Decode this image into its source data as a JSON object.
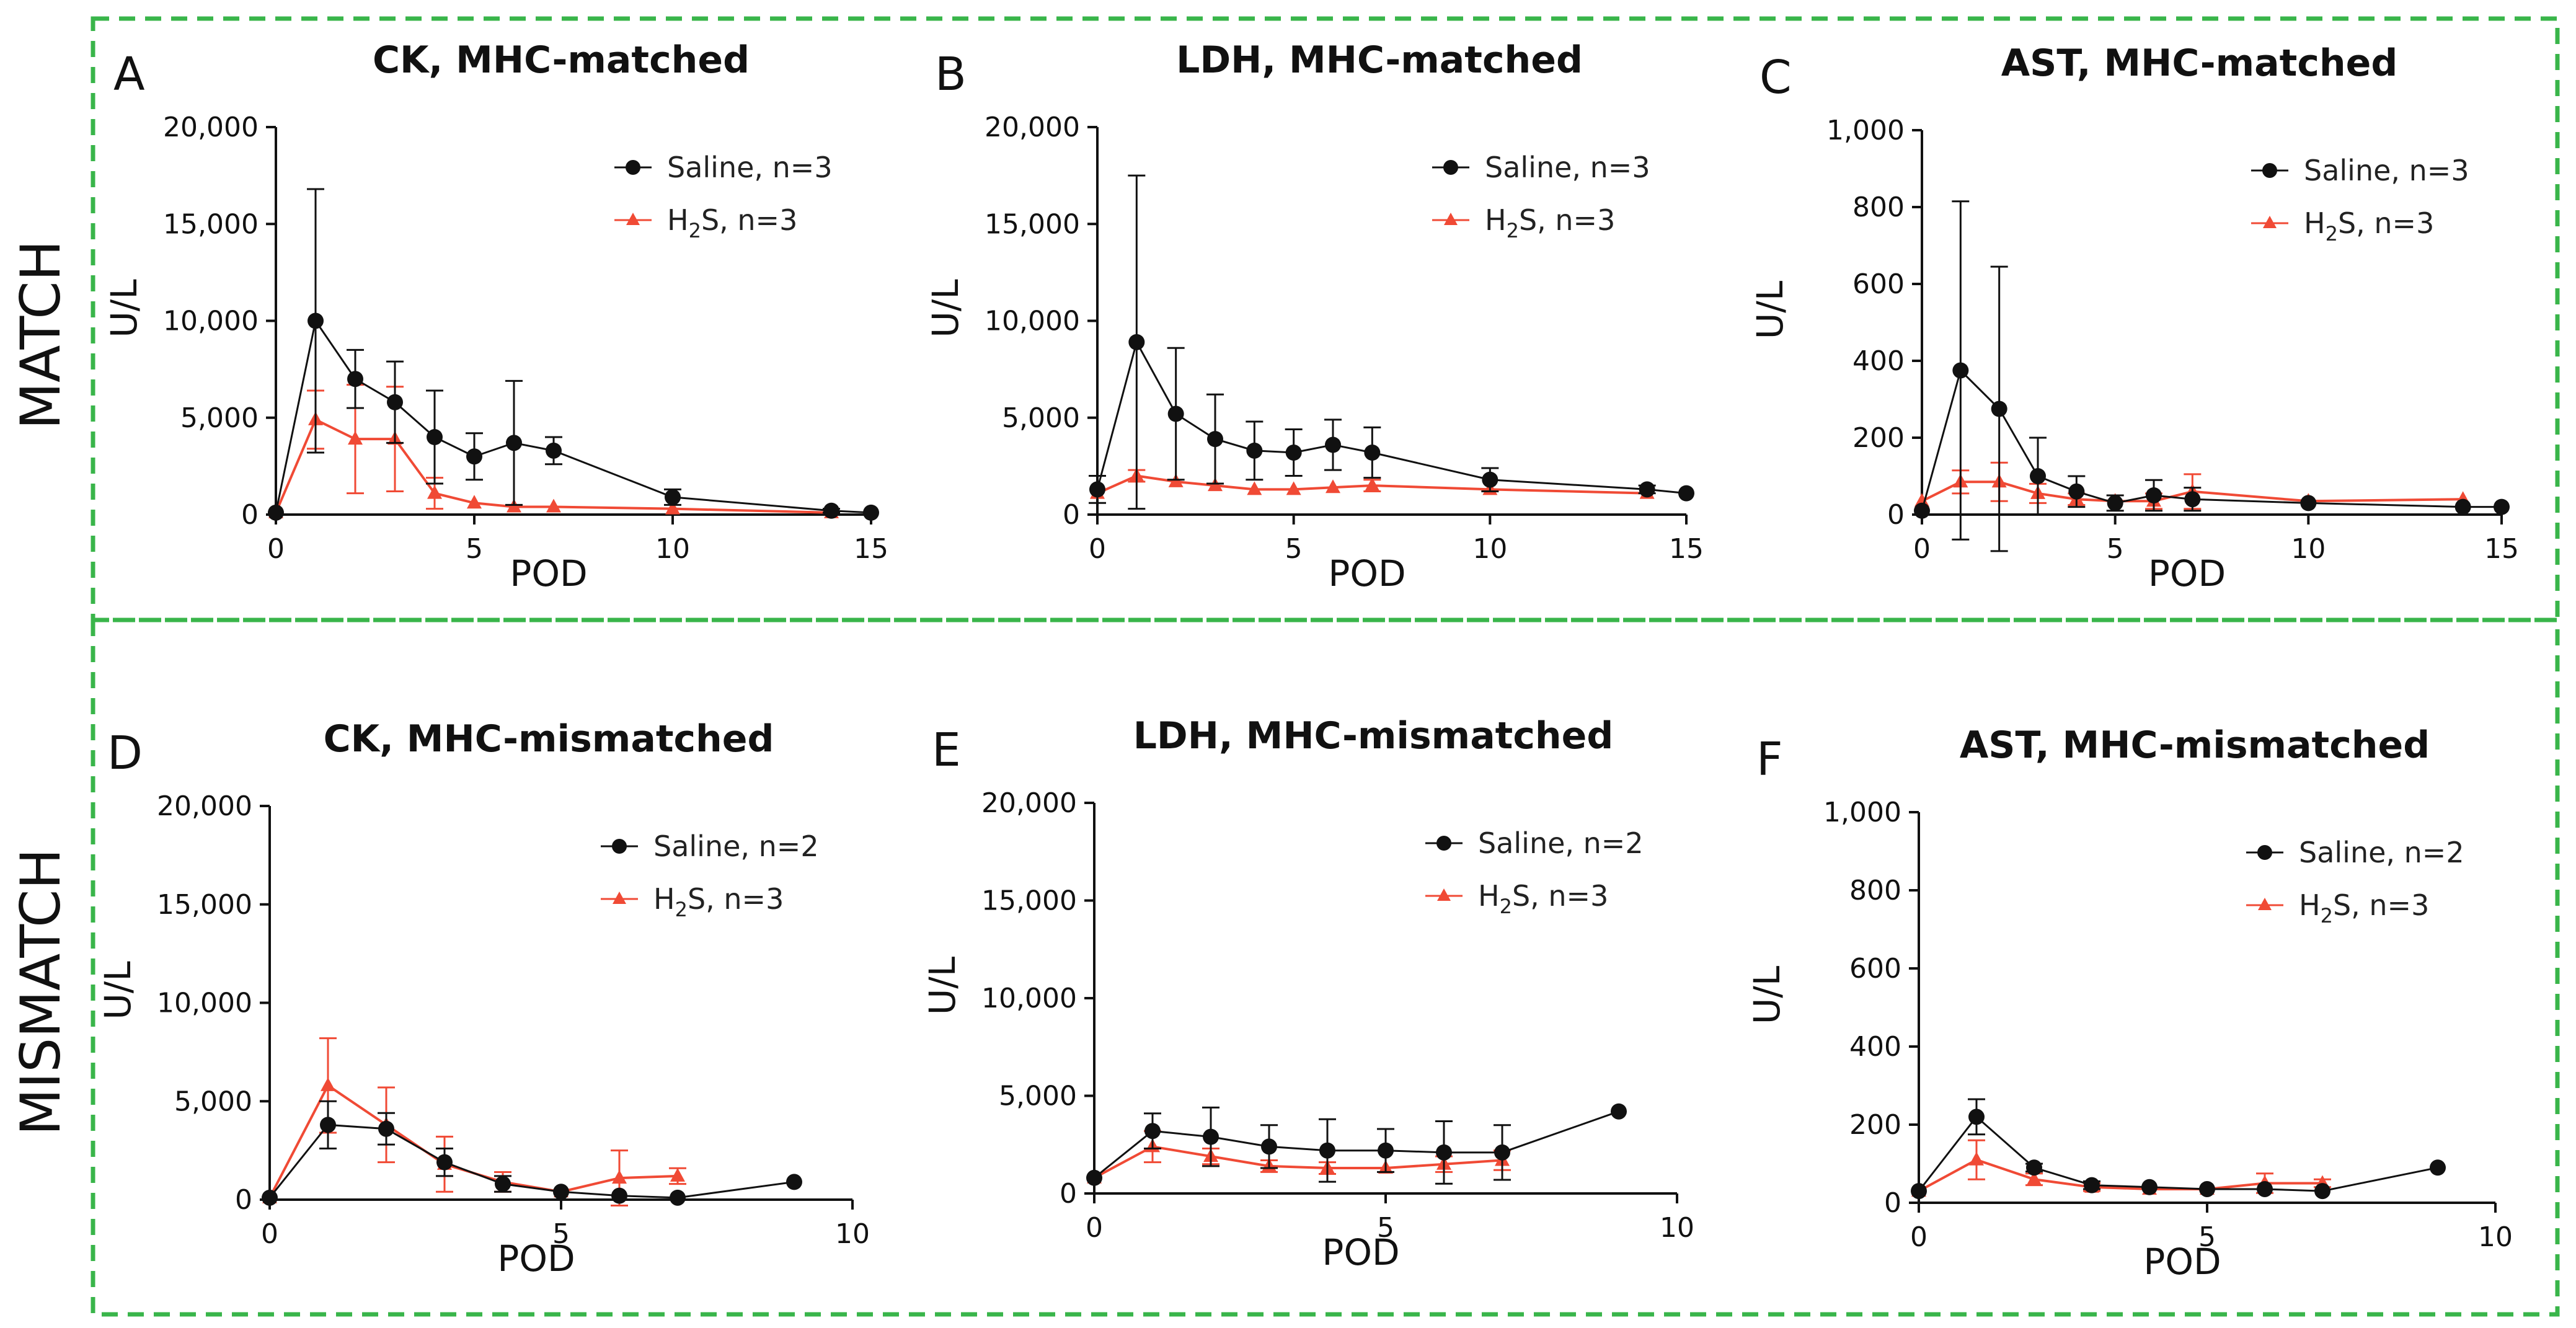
{
  "section_labels": [
    "MATCH",
    "MISMATCH"
  ],
  "colors": {
    "saline": "#111111",
    "h2s": "#f04a35",
    "frame": "#39b54a"
  },
  "chart_data": [
    {
      "panel": "A",
      "type": "line",
      "title": "CK, MHC-matched",
      "xlabel": "POD",
      "ylabel": "U/L",
      "xlim": [
        0,
        15
      ],
      "ylim": [
        0,
        20000
      ],
      "xticks": [
        "0",
        "5",
        "10",
        "15"
      ],
      "xtick_values": [
        0,
        5,
        10,
        15
      ],
      "yticks": [
        "0",
        "5,000",
        "10,000",
        "15,000",
        "20,000"
      ],
      "ytick_values": [
        0,
        5000,
        10000,
        15000,
        20000
      ],
      "legend": {
        "saline": "Saline, n=3",
        "h2s_prefix": "H",
        "h2s_sub": "2",
        "h2s_suffix": "S, n=3"
      },
      "series": [
        {
          "name": "Saline",
          "marker": "circle",
          "x": [
            0,
            1,
            2,
            3,
            4,
            5,
            6,
            7,
            10,
            14,
            15
          ],
          "y": [
            100,
            10000,
            7000,
            5800,
            4000,
            3000,
            3700,
            3300,
            900,
            200,
            100
          ],
          "err": [
            0,
            6800,
            1500,
            2100,
            2400,
            1200,
            3200,
            700,
            400,
            100,
            0
          ]
        },
        {
          "name": "H2S",
          "marker": "triangle",
          "x": [
            0,
            1,
            2,
            3,
            4,
            5,
            6,
            7,
            10,
            14
          ],
          "y": [
            100,
            4900,
            3900,
            3900,
            1100,
            600,
            400,
            400,
            300,
            100
          ],
          "err": [
            0,
            1500,
            2800,
            2700,
            800,
            0,
            0,
            0,
            0,
            0
          ]
        }
      ]
    },
    {
      "panel": "B",
      "type": "line",
      "title": "LDH, MHC-matched",
      "xlabel": "POD",
      "ylabel": "U/L",
      "xlim": [
        0,
        15
      ],
      "ylim": [
        0,
        20000
      ],
      "xticks": [
        "0",
        "5",
        "10",
        "15"
      ],
      "xtick_values": [
        0,
        5,
        10,
        15
      ],
      "yticks": [
        "0",
        "5,000",
        "10,000",
        "15,000",
        "20,000"
      ],
      "ytick_values": [
        0,
        5000,
        10000,
        15000,
        20000
      ],
      "legend": {
        "saline": "Saline, n=3",
        "h2s_prefix": "H",
        "h2s_sub": "2",
        "h2s_suffix": "S, n=3"
      },
      "series": [
        {
          "name": "Saline",
          "marker": "circle",
          "x": [
            0,
            1,
            2,
            3,
            4,
            5,
            6,
            7,
            10,
            14,
            15
          ],
          "y": [
            1300,
            8900,
            5200,
            3900,
            3300,
            3200,
            3600,
            3200,
            1800,
            1300,
            1100
          ],
          "err": [
            700,
            8600,
            3400,
            2300,
            1500,
            1200,
            1300,
            1300,
            600,
            200,
            0
          ]
        },
        {
          "name": "H2S",
          "marker": "triangle",
          "x": [
            0,
            1,
            2,
            3,
            4,
            5,
            6,
            7,
            10,
            14
          ],
          "y": [
            1100,
            2000,
            1700,
            1500,
            1300,
            1300,
            1400,
            1500,
            1300,
            1100
          ],
          "err": [
            0,
            300,
            0,
            0,
            0,
            0,
            0,
            300,
            0,
            0
          ]
        }
      ]
    },
    {
      "panel": "C",
      "type": "line",
      "title": "AST, MHC-matched",
      "xlabel": "POD",
      "ylabel": "U/L",
      "xlim": [
        0,
        15
      ],
      "ylim": [
        0,
        1000
      ],
      "xticks": [
        "0",
        "5",
        "10",
        "15"
      ],
      "xtick_values": [
        0,
        5,
        10,
        15
      ],
      "yticks": [
        "0",
        "200",
        "400",
        "600",
        "800",
        "1,000"
      ],
      "ytick_values": [
        0,
        200,
        400,
        600,
        800,
        1000
      ],
      "legend": {
        "saline": "Saline, n=3",
        "h2s_prefix": "H",
        "h2s_sub": "2",
        "h2s_suffix": "S, n=3"
      },
      "series": [
        {
          "name": "Saline",
          "marker": "circle",
          "x": [
            0,
            1,
            2,
            3,
            4,
            5,
            6,
            7,
            10,
            14,
            15
          ],
          "y": [
            10,
            375,
            275,
            100,
            60,
            30,
            50,
            40,
            30,
            20,
            20
          ],
          "err": [
            0,
            440,
            370,
            100,
            40,
            20,
            40,
            30,
            0,
            0,
            0
          ]
        },
        {
          "name": "H2S",
          "marker": "triangle",
          "x": [
            0,
            1,
            2,
            3,
            4,
            5,
            6,
            7,
            10,
            14
          ],
          "y": [
            35,
            85,
            85,
            55,
            40,
            35,
            35,
            60,
            35,
            40
          ],
          "err": [
            0,
            30,
            50,
            25,
            15,
            0,
            20,
            45,
            0,
            0
          ]
        }
      ]
    },
    {
      "panel": "D",
      "type": "line",
      "title": "CK, MHC-mismatched",
      "xlabel": "POD",
      "ylabel": "U/L",
      "xlim": [
        0,
        10
      ],
      "ylim": [
        0,
        20000
      ],
      "xticks": [
        "0",
        "5",
        "10"
      ],
      "xtick_values": [
        0,
        5,
        10
      ],
      "yticks": [
        "0",
        "5,000",
        "10,000",
        "15,000",
        "20,000"
      ],
      "ytick_values": [
        0,
        5000,
        10000,
        15000,
        20000
      ],
      "legend": {
        "saline": "Saline, n=2",
        "h2s_prefix": "H",
        "h2s_sub": "2",
        "h2s_suffix": "S, n=3"
      },
      "series": [
        {
          "name": "Saline",
          "marker": "circle",
          "x": [
            0,
            1,
            2,
            3,
            4,
            5,
            6,
            7,
            9
          ],
          "y": [
            100,
            3800,
            3600,
            1900,
            800,
            400,
            200,
            100,
            900
          ],
          "err": [
            0,
            1200,
            800,
            700,
            400,
            0,
            0,
            0,
            0
          ]
        },
        {
          "name": "H2S",
          "marker": "triangle",
          "x": [
            0,
            1,
            2,
            3,
            4,
            5,
            6,
            7
          ],
          "y": [
            100,
            5800,
            3800,
            1800,
            900,
            400,
            1100,
            1200
          ],
          "err": [
            0,
            2400,
            1900,
            1400,
            500,
            0,
            1400,
            400
          ]
        }
      ]
    },
    {
      "panel": "E",
      "type": "line",
      "title": "LDH, MHC-mismatched",
      "xlabel": "POD",
      "ylabel": "U/L",
      "xlim": [
        0,
        10
      ],
      "ylim": [
        0,
        20000
      ],
      "xticks": [
        "0",
        "5",
        "10"
      ],
      "xtick_values": [
        0,
        5,
        10
      ],
      "yticks": [
        "0",
        "5,000",
        "10,000",
        "15,000",
        "20,000"
      ],
      "ytick_values": [
        0,
        5000,
        10000,
        15000,
        20000
      ],
      "legend": {
        "saline": "Saline, n=2",
        "h2s_prefix": "H",
        "h2s_sub": "2",
        "h2s_suffix": "S, n=3"
      },
      "series": [
        {
          "name": "Saline",
          "marker": "circle",
          "x": [
            0,
            1,
            2,
            3,
            4,
            5,
            6,
            7,
            9
          ],
          "y": [
            800,
            3200,
            2900,
            2400,
            2200,
            2200,
            2100,
            2100,
            4200
          ],
          "err": [
            0,
            900,
            1500,
            1100,
            1600,
            1100,
            1600,
            1400,
            0
          ]
        },
        {
          "name": "H2S",
          "marker": "triangle",
          "x": [
            0,
            1,
            2,
            3,
            4,
            5,
            6,
            7
          ],
          "y": [
            800,
            2400,
            1900,
            1400,
            1300,
            1300,
            1500,
            1700
          ],
          "err": [
            0,
            800,
            400,
            300,
            300,
            0,
            400,
            500
          ]
        }
      ]
    },
    {
      "panel": "F",
      "type": "line",
      "title": "AST, MHC-mismatched",
      "xlabel": "POD",
      "ylabel": "U/L",
      "xlim": [
        0,
        10
      ],
      "ylim": [
        0,
        1000
      ],
      "xticks": [
        "0",
        "5",
        "10"
      ],
      "xtick_values": [
        0,
        5,
        10
      ],
      "yticks": [
        "0",
        "200",
        "400",
        "600",
        "800",
        "1,000"
      ],
      "ytick_values": [
        0,
        200,
        400,
        600,
        800,
        1000
      ],
      "legend": {
        "saline": "Saline, n=2",
        "h2s_prefix": "H",
        "h2s_sub": "2",
        "h2s_suffix": "S, n=3"
      },
      "series": [
        {
          "name": "Saline",
          "marker": "circle",
          "x": [
            0,
            1,
            2,
            3,
            4,
            5,
            6,
            7,
            9
          ],
          "y": [
            30,
            220,
            90,
            45,
            40,
            35,
            35,
            30,
            90
          ],
          "err": [
            0,
            45,
            10,
            10,
            0,
            0,
            0,
            0,
            0
          ]
        },
        {
          "name": "H2S",
          "marker": "triangle",
          "x": [
            0,
            1,
            2,
            3,
            4,
            5,
            6,
            7
          ],
          "y": [
            30,
            110,
            60,
            40,
            35,
            35,
            50,
            50
          ],
          "err": [
            0,
            50,
            15,
            10,
            0,
            0,
            25,
            10
          ]
        }
      ]
    }
  ]
}
